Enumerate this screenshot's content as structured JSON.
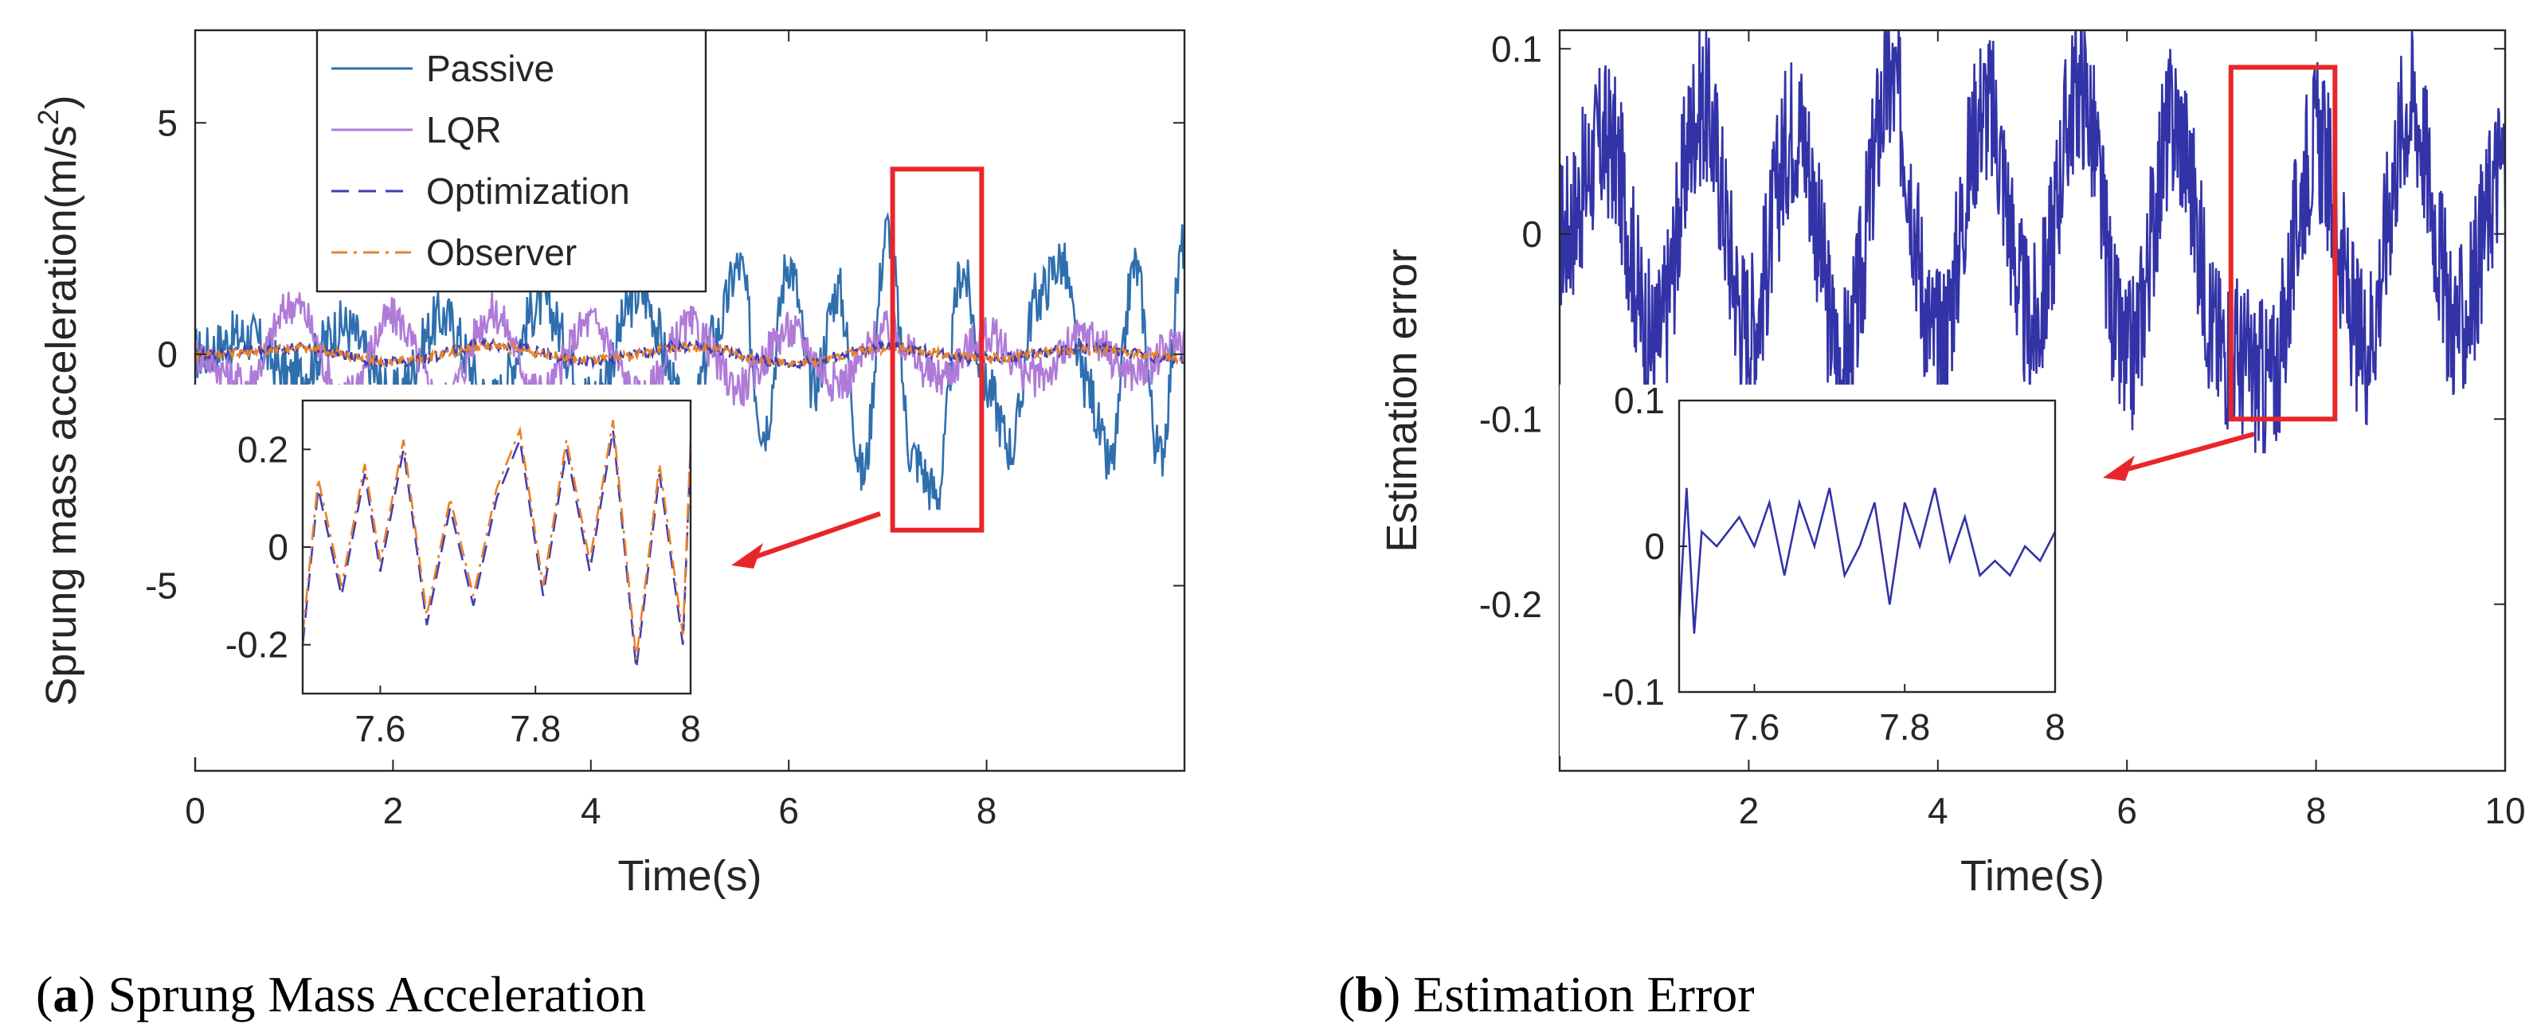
{
  "captions": [
    {
      "letter": "a",
      "text": "Sprung Mass Acceleration"
    },
    {
      "letter": "b",
      "text": "Estimation Error"
    }
  ],
  "chart_data": [
    {
      "id": "a",
      "type": "line",
      "title": "",
      "xlabel": "Time(s)",
      "ylabel": "Sprung mass acceleration(m/s",
      "ylabel_sup": "2",
      "ylabel_end": ")",
      "xlim": [
        0,
        10
      ],
      "ylim": [
        -9,
        7
      ],
      "xticks": [
        0,
        2,
        4,
        6,
        8
      ],
      "yticks": [
        5,
        0,
        -5
      ],
      "legend_position": "top-left",
      "series": [
        {
          "name": "Passive",
          "color": "#2f6fae",
          "style": "solid",
          "x": [
            0,
            0.5,
            1,
            1.5,
            2,
            2.5,
            3,
            3.5,
            4,
            4.5,
            5,
            5.25,
            5.5,
            5.75,
            6,
            6.25,
            6.5,
            6.75,
            7,
            7.25,
            7.5,
            7.75,
            8,
            8.25,
            8.5,
            8.75,
            9,
            9.25,
            9.5,
            9.75,
            10
          ],
          "y": [
            0,
            0.4,
            -0.5,
            0.6,
            -0.9,
            0.8,
            -1,
            1.1,
            -0.9,
            1.3,
            -1.4,
            0.4,
            1.9,
            -1.6,
            2.0,
            -0.7,
            1.4,
            -2.6,
            2.7,
            -2.2,
            -3.0,
            1.8,
            -0.7,
            -2.0,
            1.2,
            2.0,
            -0.6,
            -2.4,
            1.9,
            -2.2,
            2.4
          ]
        },
        {
          "name": "LQR",
          "color": "#b07bd8",
          "style": "solid",
          "x": [
            0,
            0.5,
            1,
            1.5,
            2,
            2.5,
            3,
            3.5,
            4,
            4.5,
            5,
            5.5,
            6,
            6.5,
            7,
            7.5,
            8,
            8.5,
            9,
            9.5,
            10
          ],
          "y": [
            0,
            -0.6,
            1.1,
            -0.9,
            0.8,
            -1.0,
            0.9,
            -0.8,
            0.7,
            -0.9,
            0.6,
            -0.7,
            0.5,
            -0.6,
            0.5,
            -0.5,
            0.4,
            -0.5,
            0.4,
            -0.4,
            0.3
          ]
        },
        {
          "name": "Optimization",
          "color": "#3d3db8",
          "style": "dashed",
          "x": [
            0,
            1,
            2,
            3,
            4,
            5,
            6,
            7,
            8,
            9,
            10
          ],
          "y": [
            0,
            0.15,
            -0.18,
            0.2,
            -0.15,
            0.18,
            -0.2,
            0.15,
            -0.1,
            0.12,
            -0.1
          ]
        },
        {
          "name": "Observer",
          "color": "#e8822a",
          "style": "dashdot",
          "x": [
            0,
            1,
            2,
            3,
            4,
            5,
            6,
            7,
            8,
            9,
            10
          ],
          "y": [
            0,
            0.12,
            -0.15,
            0.16,
            -0.12,
            0.15,
            -0.18,
            0.12,
            -0.08,
            0.1,
            -0.08
          ]
        }
      ],
      "highlight_box": {
        "x": [
          7.05,
          7.95
        ],
        "y": [
          -3.8,
          4.0
        ]
      },
      "inset": {
        "xlim": [
          7.5,
          8
        ],
        "ylim": [
          -0.3,
          0.3
        ],
        "xticks": [
          7.6,
          7.8,
          8
        ],
        "yticks": [
          0.2,
          0,
          -0.2
        ],
        "series": [
          {
            "name": "Optimization",
            "color": "#3d3db8",
            "style": "dashed",
            "x": [
              7.5,
              7.52,
              7.55,
              7.58,
              7.6,
              7.63,
              7.66,
              7.69,
              7.72,
              7.75,
              7.78,
              7.81,
              7.84,
              7.87,
              7.9,
              7.93,
              7.96,
              7.99,
              8.0
            ],
            "y": [
              -0.2,
              0.12,
              -0.1,
              0.15,
              -0.05,
              0.2,
              -0.16,
              0.08,
              -0.12,
              0.1,
              0.22,
              -0.1,
              0.2,
              -0.05,
              0.24,
              -0.25,
              0.15,
              -0.2,
              0.2
            ]
          },
          {
            "name": "Observer",
            "color": "#e8822a",
            "style": "dashdot",
            "x": [
              7.5,
              7.52,
              7.55,
              7.58,
              7.6,
              7.63,
              7.66,
              7.69,
              7.72,
              7.75,
              7.78,
              7.81,
              7.84,
              7.87,
              7.9,
              7.93,
              7.96,
              7.99,
              8.0
            ],
            "y": [
              -0.18,
              0.14,
              -0.08,
              0.17,
              -0.03,
              0.22,
              -0.14,
              0.1,
              -0.1,
              0.12,
              0.24,
              -0.08,
              0.22,
              -0.03,
              0.26,
              -0.23,
              0.17,
              -0.18,
              0.22
            ]
          }
        ]
      }
    },
    {
      "id": "b",
      "type": "line",
      "title": "",
      "xlabel": "Time(s)",
      "ylabel": "Estimation error",
      "xlim": [
        0,
        10
      ],
      "ylim": [
        -0.29,
        0.11
      ],
      "xticks": [
        2,
        4,
        6,
        8,
        10
      ],
      "yticks": [
        0.1,
        0,
        -0.1,
        -0.2
      ],
      "series": [
        {
          "name": "Estimation error",
          "color": "#3333a8",
          "style": "solid",
          "x": [
            0,
            0.5,
            1,
            1.5,
            2,
            2.5,
            3,
            3.5,
            4,
            4.5,
            5,
            5.5,
            6,
            6.5,
            7,
            7.5,
            8,
            8.5,
            9,
            9.5,
            10
          ],
          "y": [
            0,
            0.05,
            -0.06,
            0.07,
            -0.05,
            0.06,
            -0.07,
            0.08,
            -0.06,
            0.07,
            -0.05,
            0.08,
            -0.07,
            0.06,
            -0.06,
            -0.08,
            0.05,
            -0.06,
            0.07,
            -0.05,
            0.04
          ]
        }
      ],
      "highlight_box": {
        "x": [
          7.1,
          8.2
        ],
        "y": [
          -0.1,
          0.09
        ]
      },
      "inset": {
        "xlim": [
          7.5,
          8
        ],
        "ylim": [
          -0.1,
          0.1
        ],
        "xticks": [
          7.6,
          7.8,
          8
        ],
        "yticks": [
          0.1,
          0,
          -0.1
        ],
        "series": [
          {
            "name": "Estimation error",
            "color": "#3333a8",
            "style": "solid",
            "x": [
              7.5,
              7.51,
              7.52,
              7.53,
              7.55,
              7.58,
              7.6,
              7.62,
              7.64,
              7.66,
              7.68,
              7.7,
              7.72,
              7.74,
              7.76,
              7.78,
              7.8,
              7.82,
              7.84,
              7.86,
              7.88,
              7.9,
              7.92,
              7.94,
              7.96,
              7.98,
              8.0
            ],
            "y": [
              -0.05,
              0.04,
              -0.06,
              0.01,
              0.0,
              0.02,
              0.0,
              0.03,
              -0.02,
              0.03,
              0.0,
              0.04,
              -0.02,
              0.0,
              0.03,
              -0.04,
              0.03,
              0.0,
              0.04,
              -0.01,
              0.02,
              -0.02,
              -0.01,
              -0.02,
              0.0,
              -0.01,
              0.01
            ]
          }
        ]
      }
    }
  ]
}
